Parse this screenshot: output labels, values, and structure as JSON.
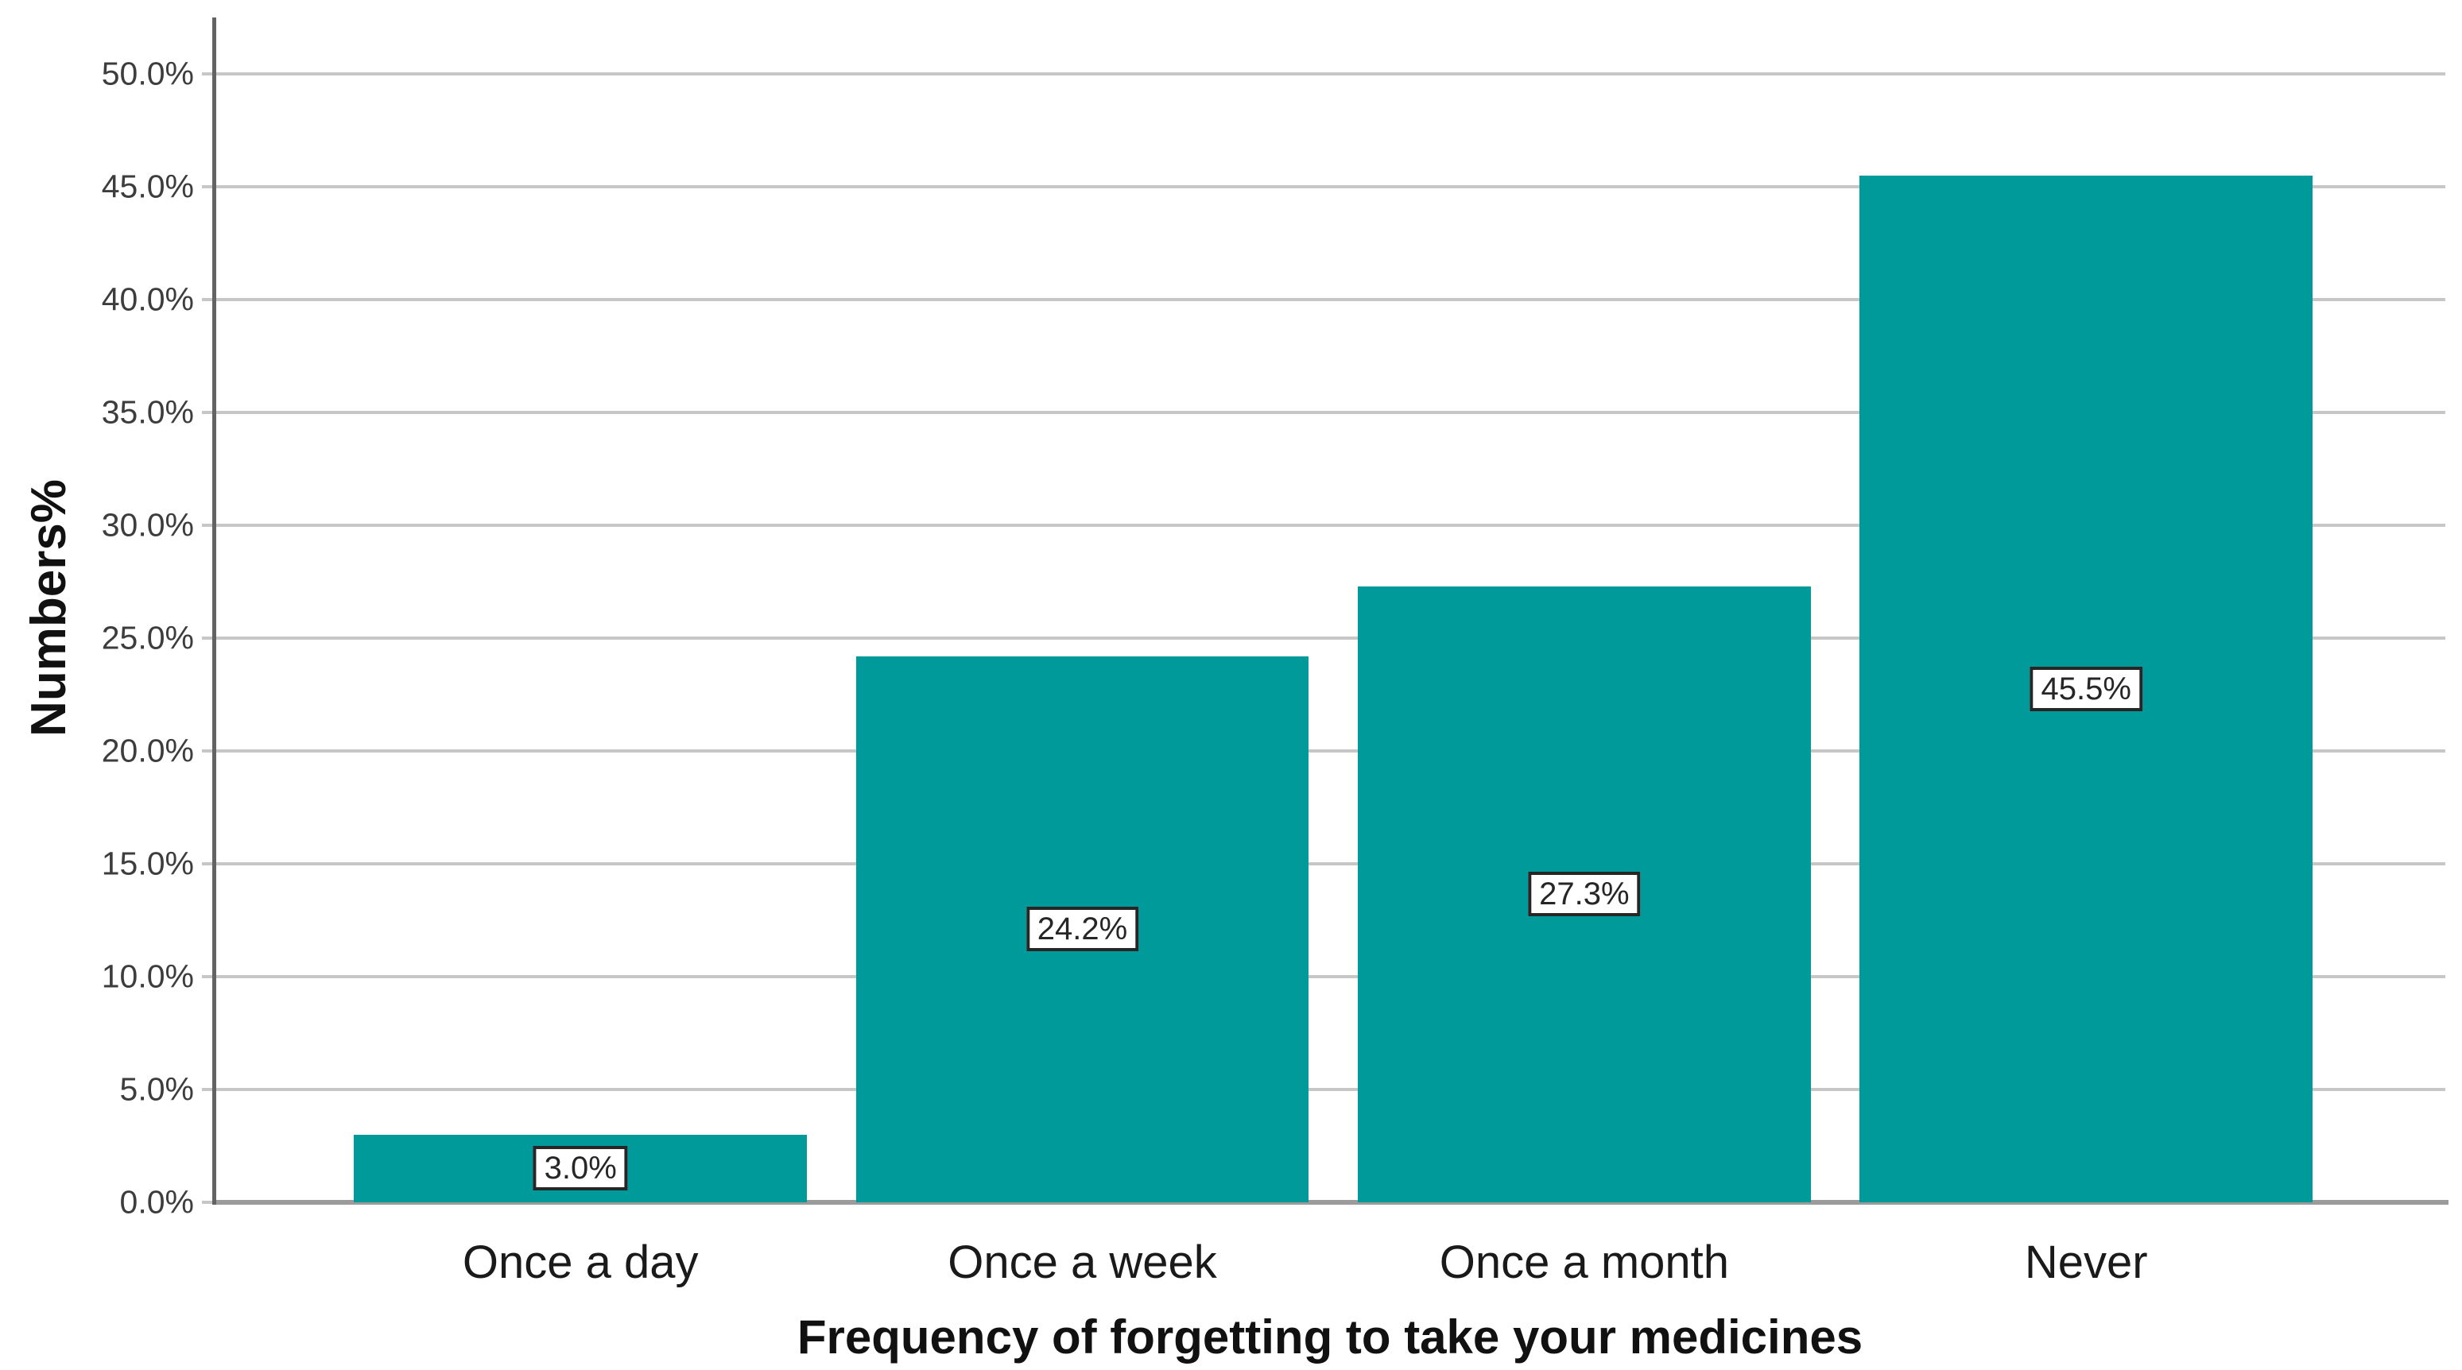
{
  "chart_data": {
    "type": "bar",
    "title": "",
    "categories": [
      "Once a day",
      "Once a week",
      "Once a month",
      "Never"
    ],
    "values": [
      3.0,
      24.2,
      27.3,
      45.5
    ],
    "bar_labels": [
      "3.0%",
      "24.2%",
      "27.3%",
      "45.5%"
    ],
    "xlabel": "Frequency of forgetting to take your medicines",
    "ylabel": "Numbers%",
    "y_tick_values": [
      0,
      5,
      10,
      15,
      20,
      25,
      30,
      35,
      40,
      45,
      50
    ],
    "y_tick_labels": [
      "0.0%",
      "5.0%",
      "10.0%",
      "15.0%",
      "20.0%",
      "25.0%",
      "30.0%",
      "35.0%",
      "40.0%",
      "45.0%",
      "50.0%"
    ],
    "ylim": [
      0,
      52.5
    ],
    "grid": "horizontal",
    "legend": "none"
  },
  "colors": {
    "bar": "#009a9b",
    "gridline": "#c7c7c7",
    "baseline": "#9b9b9b",
    "y_axis_line": "#636363",
    "label_box_border": "#262626",
    "label_box_bg": "#ffffff",
    "label_box_text": "#262626",
    "tick_text": "#3d3d3d",
    "category_text": "#1a1a1a",
    "title_text": "#111111",
    "background": "#ffffff"
  }
}
